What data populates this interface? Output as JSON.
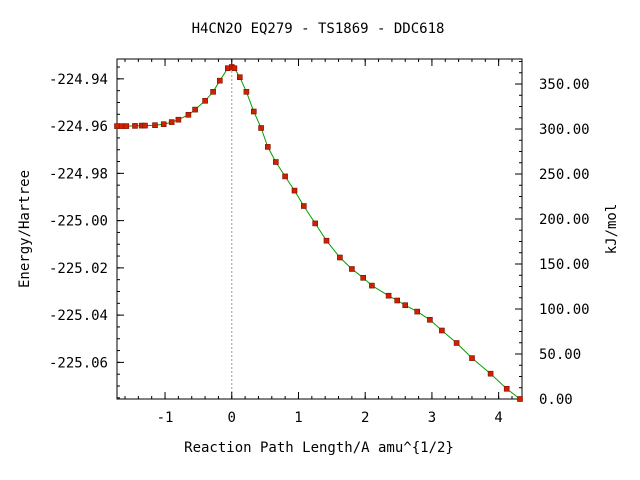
{
  "chart_data": {
    "type": "line",
    "title": "H4CN2O   EQ279 - TS1869 - DDC618",
    "xlabel": "Reaction Path Length/A amu^{1/2}",
    "ylabel": "Energy/Hartree",
    "y2label": "kJ/mol",
    "xlim": [
      -1.72,
      4.35
    ],
    "ylim": [
      -225.0755,
      -224.9316
    ],
    "y2lim": [
      0.0,
      377.8
    ],
    "grid": false,
    "x_ticks": [
      -1,
      0,
      1,
      2,
      3,
      4
    ],
    "x_tick_labels": [
      "-1",
      "0",
      "1",
      "2",
      "3",
      "4"
    ],
    "y_ticks": [
      -224.94,
      -224.96,
      -224.98,
      -225.0,
      -225.02,
      -225.04,
      -225.06
    ],
    "y_tick_labels": [
      "-224.94",
      "-224.96",
      "-224.98",
      "-225.00",
      "-225.02",
      "-225.04",
      "-225.06"
    ],
    "y2_ticks": [
      350,
      300,
      250,
      200,
      150,
      100,
      50,
      0
    ],
    "y2_tick_labels": [
      "350.00",
      "300.00",
      "250.00",
      "200.00",
      "150.00",
      "100.00",
      "50.00",
      "0.00"
    ],
    "ts_x": 0.0,
    "colors": {
      "irc_line": "#00a000",
      "points": "#d02000",
      "point_edge": "#7a1000",
      "ts_line": "#999999"
    },
    "series": [
      {
        "x": [
          -1.72,
          -1.65,
          -1.58,
          -1.45,
          -1.35,
          -1.3,
          -1.15,
          -1.02,
          -0.9,
          -0.8,
          -0.65,
          -0.55,
          -0.4,
          -0.28,
          -0.18,
          -0.06,
          0.0,
          0.04,
          0.12,
          0.22,
          0.33,
          0.44,
          0.54,
          0.66,
          0.8,
          0.94,
          1.08,
          1.25,
          1.42,
          1.62,
          1.8,
          1.97,
          2.1,
          2.35,
          2.48,
          2.6,
          2.78,
          2.97,
          3.15,
          3.37,
          3.6,
          3.88,
          4.12,
          4.32
        ],
        "y": [
          -224.96,
          -224.96,
          -224.96,
          -224.9599,
          -224.9598,
          -224.9598,
          -224.9596,
          -224.9592,
          -224.9583,
          -224.9573,
          -224.9552,
          -224.953,
          -224.9493,
          -224.9455,
          -224.9408,
          -224.9355,
          -224.935,
          -224.9355,
          -224.9393,
          -224.9455,
          -224.9538,
          -224.9608,
          -224.9688,
          -224.9752,
          -224.9813,
          -224.9873,
          -224.9938,
          -225.0012,
          -225.0085,
          -225.0156,
          -225.0205,
          -225.0242,
          -225.0275,
          -225.0318,
          -225.0338,
          -225.0358,
          -225.0385,
          -225.042,
          -225.0465,
          -225.0518,
          -225.0582,
          -225.0648,
          -225.0712,
          -225.0755
        ]
      }
    ]
  }
}
